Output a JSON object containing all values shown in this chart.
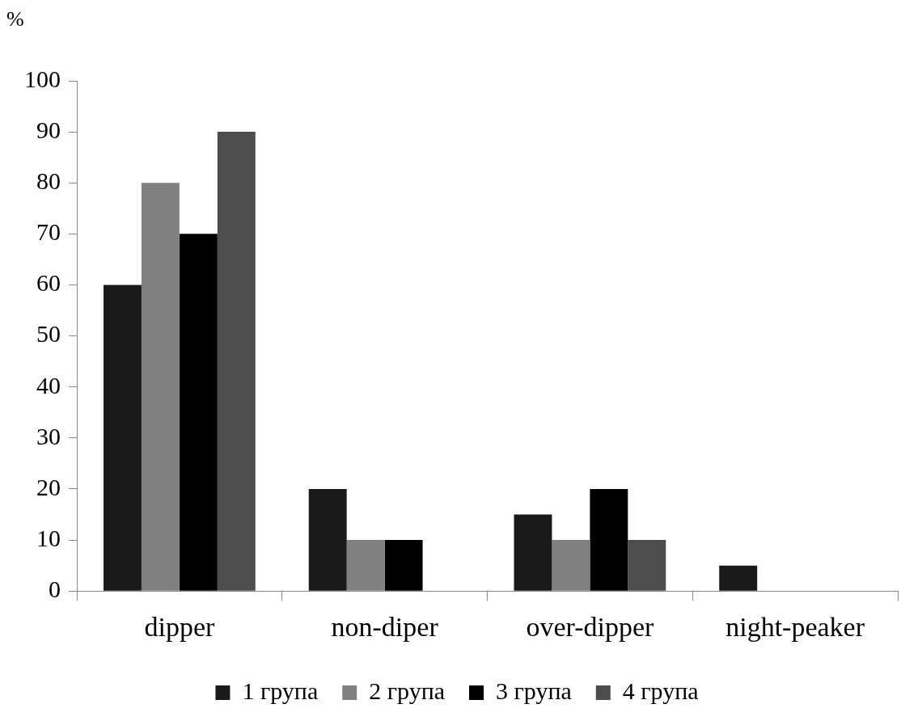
{
  "chart_data": {
    "type": "bar",
    "ylabel": "%",
    "categories": [
      "dipper",
      "non-diper",
      "over-dipper",
      "night-peaker"
    ],
    "series": [
      {
        "name": "1 група",
        "color": "#1a1a1a",
        "values": [
          60,
          20,
          15,
          5
        ]
      },
      {
        "name": "2 група",
        "color": "#808080",
        "values": [
          80,
          10,
          10,
          0
        ]
      },
      {
        "name": "3 група",
        "color": "#000000",
        "values": [
          70,
          10,
          20,
          0
        ]
      },
      {
        "name": "4 група",
        "color": "#4d4d4d",
        "values": [
          90,
          0,
          10,
          0
        ]
      }
    ],
    "ylim": [
      0,
      100
    ],
    "yticks": [
      0,
      10,
      20,
      30,
      40,
      50,
      60,
      70,
      80,
      90,
      100
    ],
    "grid": false,
    "legend": "bottom"
  }
}
